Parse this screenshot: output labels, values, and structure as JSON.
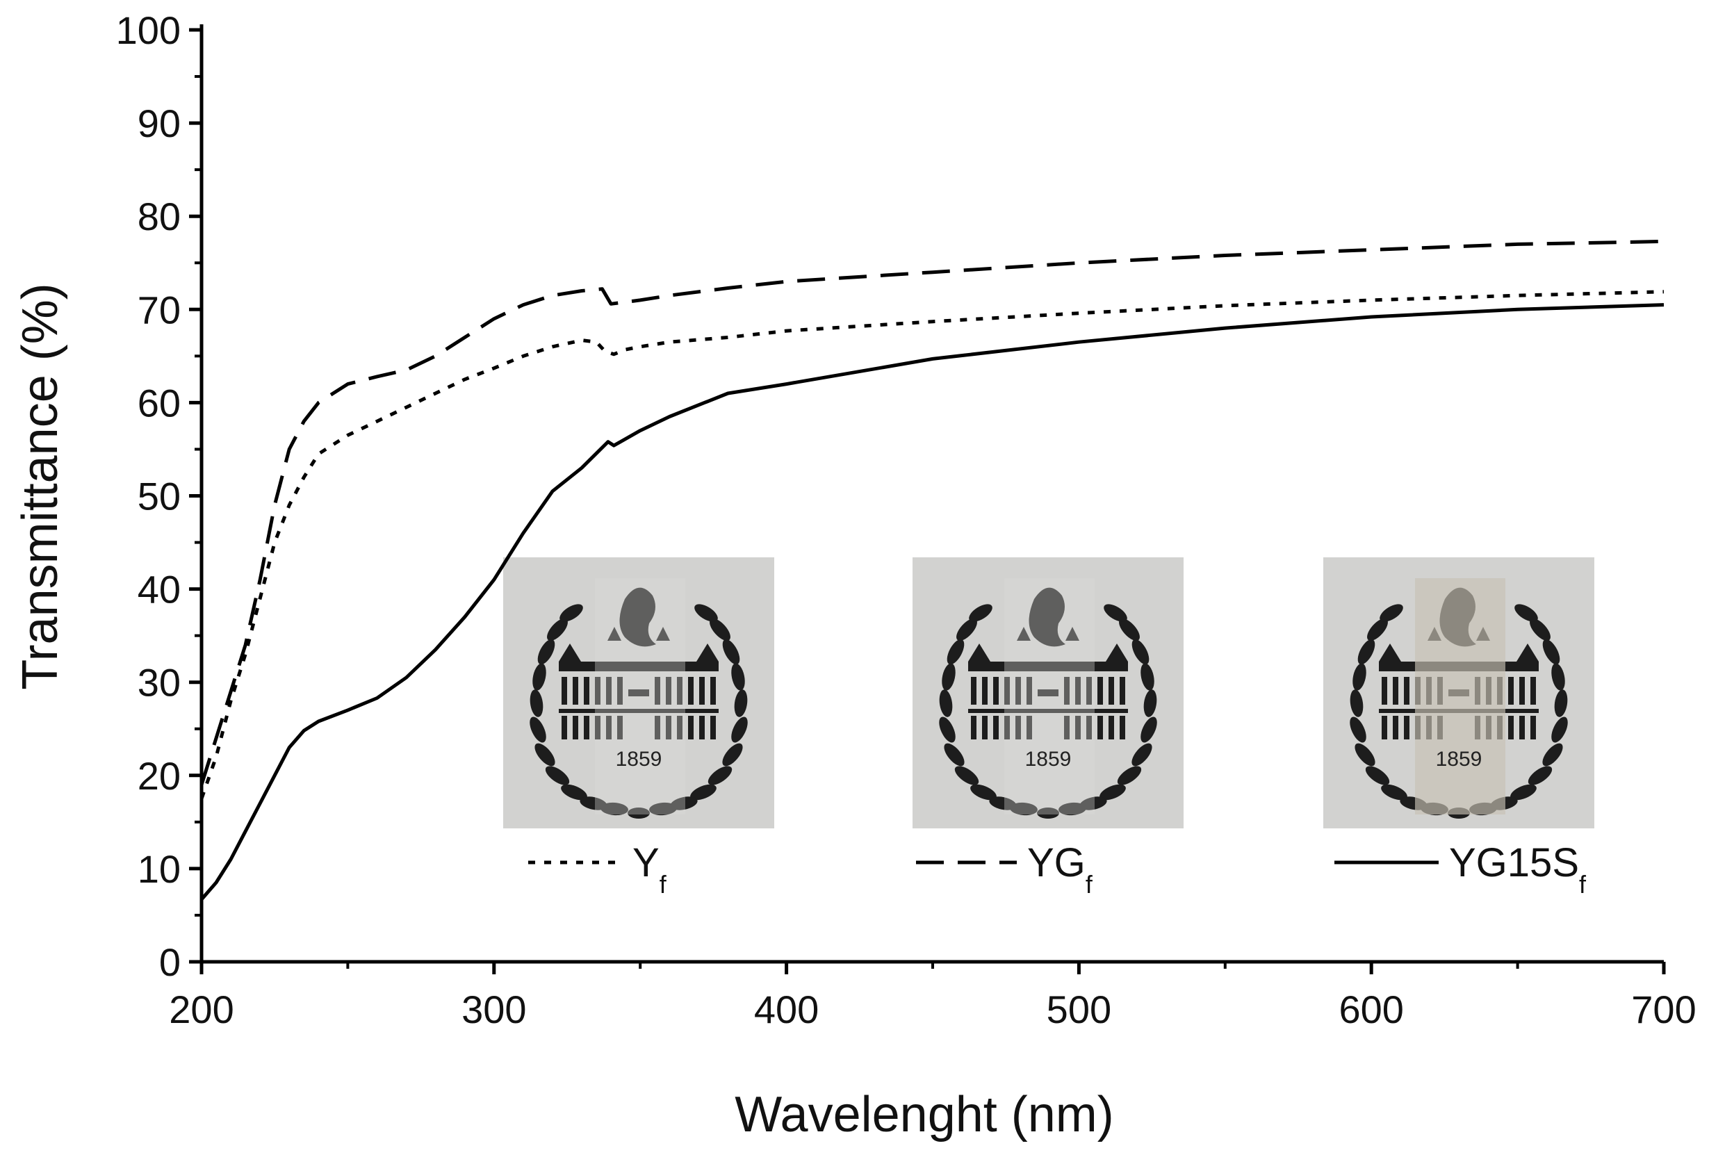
{
  "chart_data": {
    "type": "line",
    "title": "",
    "xlabel": "Wavelenght (nm)",
    "ylabel": "Transmittance (%)",
    "xlim": [
      200,
      700
    ],
    "ylim": [
      0,
      100
    ],
    "x_ticks": [
      200,
      300,
      400,
      500,
      600,
      700
    ],
    "y_ticks": [
      0,
      10,
      20,
      30,
      40,
      50,
      60,
      70,
      80,
      90,
      100
    ],
    "grid": false,
    "series": [
      {
        "name": "Y",
        "subscript": "f",
        "style": "dotted",
        "points": [
          [
            200,
            17.5
          ],
          [
            205,
            22
          ],
          [
            210,
            28
          ],
          [
            215,
            33
          ],
          [
            220,
            39
          ],
          [
            225,
            45
          ],
          [
            230,
            49
          ],
          [
            235,
            52
          ],
          [
            240,
            54.5
          ],
          [
            250,
            56.5
          ],
          [
            260,
            58
          ],
          [
            270,
            59.5
          ],
          [
            280,
            61
          ],
          [
            290,
            62.5
          ],
          [
            300,
            63.7
          ],
          [
            310,
            65
          ],
          [
            320,
            66
          ],
          [
            330,
            66.7
          ],
          [
            335,
            66.5
          ],
          [
            338,
            65.5
          ],
          [
            341,
            65.2
          ],
          [
            345,
            65.7
          ],
          [
            350,
            66
          ],
          [
            360,
            66.5
          ],
          [
            380,
            67
          ],
          [
            400,
            67.7
          ],
          [
            450,
            68.7
          ],
          [
            500,
            69.6
          ],
          [
            550,
            70.4
          ],
          [
            600,
            71
          ],
          [
            650,
            71.5
          ],
          [
            700,
            71.9
          ]
        ]
      },
      {
        "name": "YG",
        "subscript": "f",
        "style": "dashed",
        "points": [
          [
            200,
            19
          ],
          [
            205,
            24
          ],
          [
            210,
            29
          ],
          [
            215,
            34
          ],
          [
            220,
            41
          ],
          [
            225,
            49
          ],
          [
            230,
            55
          ],
          [
            235,
            58
          ],
          [
            240,
            60
          ],
          [
            250,
            62
          ],
          [
            260,
            62.8
          ],
          [
            270,
            63.5
          ],
          [
            280,
            65
          ],
          [
            290,
            67
          ],
          [
            300,
            69
          ],
          [
            310,
            70.5
          ],
          [
            320,
            71.5
          ],
          [
            330,
            72
          ],
          [
            337,
            72.2
          ],
          [
            340,
            70.6
          ],
          [
            350,
            71
          ],
          [
            360,
            71.5
          ],
          [
            380,
            72.3
          ],
          [
            400,
            73
          ],
          [
            450,
            74
          ],
          [
            500,
            75
          ],
          [
            550,
            75.8
          ],
          [
            600,
            76.4
          ],
          [
            650,
            77
          ],
          [
            700,
            77.3
          ]
        ]
      },
      {
        "name": "YG15S",
        "subscript": "f",
        "style": "solid",
        "points": [
          [
            200,
            6.7
          ],
          [
            205,
            8.5
          ],
          [
            210,
            11
          ],
          [
            215,
            14
          ],
          [
            220,
            17
          ],
          [
            225,
            20
          ],
          [
            230,
            23
          ],
          [
            235,
            24.8
          ],
          [
            240,
            25.8
          ],
          [
            250,
            27
          ],
          [
            260,
            28.3
          ],
          [
            270,
            30.5
          ],
          [
            280,
            33.5
          ],
          [
            290,
            37
          ],
          [
            300,
            41
          ],
          [
            310,
            46
          ],
          [
            320,
            50.5
          ],
          [
            330,
            53
          ],
          [
            339,
            55.8
          ],
          [
            341,
            55.4
          ],
          [
            350,
            57
          ],
          [
            360,
            58.5
          ],
          [
            380,
            61
          ],
          [
            400,
            62
          ],
          [
            450,
            64.7
          ],
          [
            500,
            66.5
          ],
          [
            550,
            68
          ],
          [
            600,
            69.2
          ],
          [
            650,
            70
          ],
          [
            700,
            70.5
          ]
        ]
      }
    ],
    "insets": [
      {
        "series": "Y",
        "year": "1859"
      },
      {
        "series": "YG",
        "year": "1859"
      },
      {
        "series": "YG15S",
        "year": "1859"
      }
    ]
  }
}
